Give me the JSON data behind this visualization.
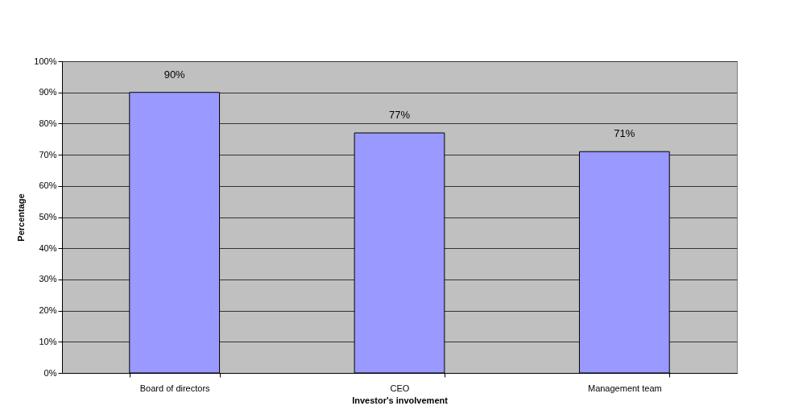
{
  "chart_data": {
    "type": "bar",
    "categories": [
      "Board of directors",
      "CEO",
      "Management team"
    ],
    "values": [
      90,
      77,
      71
    ],
    "color": "#9999ff",
    "value_labels": [
      "90%",
      "77%",
      "71%"
    ],
    "xlabel": "Investor's involvement",
    "ylabel": "Percentage",
    "ylim": [
      0,
      100
    ],
    "yticks": [
      {
        "value": 0,
        "label": "0%"
      },
      {
        "value": 10,
        "label": "10%"
      },
      {
        "value": 20,
        "label": "20%"
      },
      {
        "value": 30,
        "label": "30%"
      },
      {
        "value": 40,
        "label": "40%"
      },
      {
        "value": 50,
        "label": "50%"
      },
      {
        "value": 60,
        "label": "60%"
      },
      {
        "value": 70,
        "label": "70%"
      },
      {
        "value": 80,
        "label": "80%"
      },
      {
        "value": 90,
        "label": "90%"
      },
      {
        "value": 100,
        "label": "100%"
      }
    ],
    "grid": "y"
  }
}
